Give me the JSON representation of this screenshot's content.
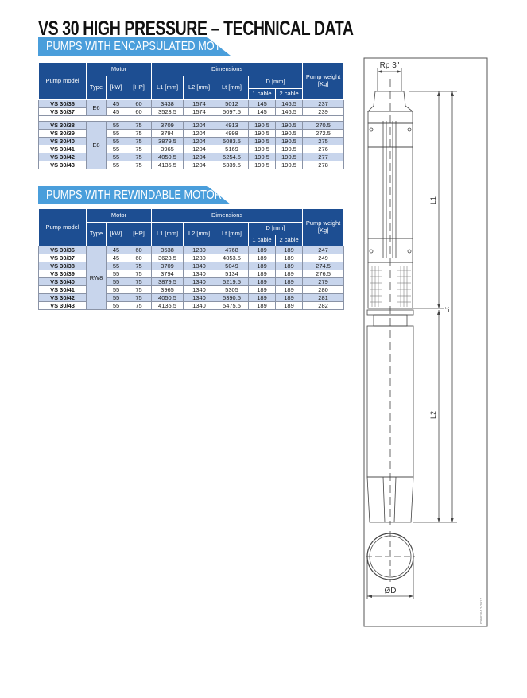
{
  "title": "VS 30 HIGH PRESSURE – TECHNICAL DATA",
  "colors": {
    "header": "#1d4e92",
    "banner": "#4a9edb",
    "row_alt": "#c8d5ec"
  },
  "headers": {
    "pump_model": "Pump model",
    "motor": "Motor",
    "type": "Type",
    "kw": "[kW]",
    "hp": "[HP]",
    "dimensions": "Dimensions",
    "l1": "L1 [mm]",
    "l2": "L2 [mm]",
    "lt": "Lt [mm]",
    "d": "D [mm]",
    "cable1": "1 cable",
    "cable2": "2 cable",
    "weight": "Pump weight [Kg]"
  },
  "encapsulated": {
    "heading": "PUMPS WITH ENCAPSULATED MOTOR",
    "groups": [
      {
        "type": "E6",
        "rows": [
          [
            "VS 30/36",
            "45",
            "60",
            "3438",
            "1574",
            "5012",
            "145",
            "146.5",
            "237"
          ],
          [
            "VS 30/37",
            "45",
            "60",
            "3523.5",
            "1574",
            "5097.5",
            "145",
            "146.5",
            "239"
          ]
        ]
      },
      {
        "type": "E8",
        "rows": [
          [
            "VS 30/38",
            "55",
            "75",
            "3709",
            "1204",
            "4913",
            "190.5",
            "190.5",
            "270.5"
          ],
          [
            "VS 30/39",
            "55",
            "75",
            "3794",
            "1204",
            "4998",
            "190.5",
            "190.5",
            "272.5"
          ],
          [
            "VS 30/40",
            "55",
            "75",
            "3879.5",
            "1204",
            "5083.5",
            "190.5",
            "190.5",
            "275"
          ],
          [
            "VS 30/41",
            "55",
            "75",
            "3965",
            "1204",
            "5169",
            "190.5",
            "190.5",
            "276"
          ],
          [
            "VS 30/42",
            "55",
            "75",
            "4050.5",
            "1204",
            "5254.5",
            "190.5",
            "190.5",
            "277"
          ],
          [
            "VS 30/43",
            "55",
            "75",
            "4135.5",
            "1204",
            "5339.5",
            "190.5",
            "190.5",
            "278"
          ]
        ]
      }
    ]
  },
  "rewindable": {
    "heading": "PUMPS WITH REWINDABLE MOTOR",
    "groups": [
      {
        "type": "RW8",
        "rows": [
          [
            "VS 30/36",
            "45",
            "60",
            "3538",
            "1230",
            "4768",
            "189",
            "189",
            "247"
          ],
          [
            "VS 30/37",
            "45",
            "60",
            "3623.5",
            "1230",
            "4853.5",
            "189",
            "189",
            "249"
          ],
          [
            "VS 30/38",
            "55",
            "75",
            "3709",
            "1340",
            "5049",
            "189",
            "189",
            "274.5"
          ],
          [
            "VS 30/39",
            "55",
            "75",
            "3794",
            "1340",
            "5134",
            "189",
            "189",
            "276.5"
          ],
          [
            "VS 30/40",
            "55",
            "75",
            "3879.5",
            "1340",
            "5219.5",
            "189",
            "189",
            "279"
          ],
          [
            "VS 30/41",
            "55",
            "75",
            "3965",
            "1340",
            "5305",
            "189",
            "189",
            "280"
          ],
          [
            "VS 30/42",
            "55",
            "75",
            "4050.5",
            "1340",
            "5390.5",
            "189",
            "189",
            "281"
          ],
          [
            "VS 30/43",
            "55",
            "75",
            "4135.5",
            "1340",
            "5475.5",
            "189",
            "189",
            "282"
          ]
        ]
      }
    ]
  },
  "drawing": {
    "rp_label": "Rp 3\"",
    "l1_label": "L1",
    "lt_label": "Lt",
    "l2_label": "L2",
    "d_label": "ØD",
    "code": "000838-12-2017"
  }
}
